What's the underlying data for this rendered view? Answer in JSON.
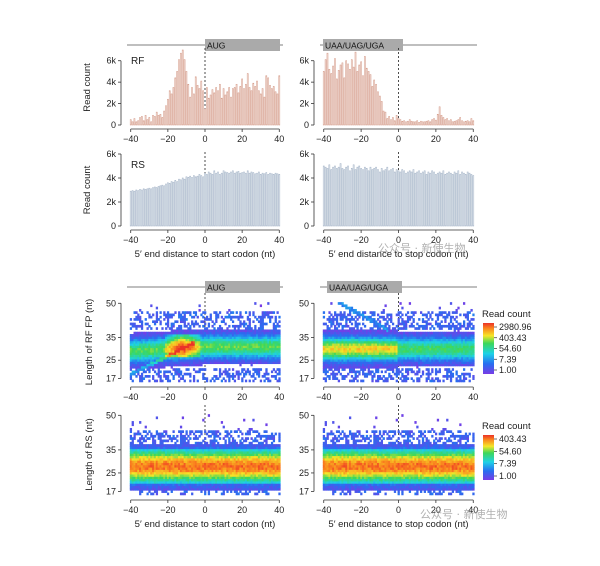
{
  "watermark": {
    "text_top": "公众号 · 新使生物",
    "text_bottom": "公众号 · 新使生物"
  },
  "chart_data": [
    {
      "type": "bar",
      "id": "rf-start",
      "header": "AUG",
      "title": "RF",
      "xlabel": "",
      "ylabel": "Read count",
      "xlim": [
        -42,
        42
      ],
      "ylim": [
        0,
        7000
      ],
      "xticks": [
        -40,
        -20,
        0,
        20,
        40
      ],
      "xticklabels": [
        "−40",
        "−20",
        "0",
        "20",
        "40"
      ],
      "yticks": [
        0,
        2000,
        4000,
        6000
      ],
      "yticklabels": [
        "0",
        "2k",
        "4k",
        "6k"
      ],
      "bar_color": "#d7a08f",
      "x": [
        -40,
        -39,
        -38,
        -37,
        -36,
        -35,
        -34,
        -33,
        -32,
        -31,
        -30,
        -29,
        -28,
        -27,
        -26,
        -25,
        -24,
        -23,
        -22,
        -21,
        -20,
        -19,
        -18,
        -17,
        -16,
        -15,
        -14,
        -13,
        -12,
        -11,
        -10,
        -9,
        -8,
        -7,
        -6,
        -5,
        -4,
        -3,
        -2,
        -1,
        0,
        1,
        2,
        3,
        4,
        5,
        6,
        7,
        8,
        9,
        10,
        11,
        12,
        13,
        14,
        15,
        16,
        17,
        18,
        19,
        20,
        21,
        22,
        23,
        24,
        25,
        26,
        27,
        28,
        29,
        30,
        31,
        32,
        33,
        34,
        35,
        36,
        37,
        38,
        39,
        40
      ],
      "values": [
        500,
        300,
        600,
        300,
        400,
        700,
        800,
        400,
        900,
        500,
        700,
        300,
        900,
        800,
        1200,
        900,
        1000,
        700,
        1300,
        1800,
        2400,
        3200,
        2900,
        3500,
        4400,
        5000,
        6100,
        6700,
        7000,
        6100,
        5000,
        3800,
        2600,
        3500,
        2900,
        4500,
        3700,
        3400,
        4100,
        3200,
        1500,
        3500,
        2500,
        2800,
        3300,
        3000,
        3500,
        3200,
        3800,
        2500,
        3400,
        2800,
        3100,
        3500,
        2600,
        3400,
        3500,
        3800,
        3000,
        3600,
        4300,
        3400,
        3800,
        4800,
        3500,
        3200,
        3900,
        3600,
        4100,
        3200,
        2900,
        3400,
        2600,
        4600,
        4400,
        3700,
        3400,
        3600,
        3100,
        2900,
        4600
      ]
    },
    {
      "type": "bar",
      "id": "rf-stop",
      "header": "UAA/UAG/UGA",
      "title": "",
      "xlabel": "",
      "ylabel": "",
      "xlim": [
        -42,
        42
      ],
      "ylim": [
        0,
        7000
      ],
      "xticks": [
        -40,
        -20,
        0,
        20,
        40
      ],
      "xticklabels": [
        "−40",
        "−20",
        "0",
        "20",
        "40"
      ],
      "yticks": [
        0,
        2000,
        4000,
        6000
      ],
      "yticklabels": [
        "0",
        "2k",
        "4k",
        "6k"
      ],
      "bar_color": "#d7a08f",
      "x": [
        -40,
        -39,
        -38,
        -37,
        -36,
        -35,
        -34,
        -33,
        -32,
        -31,
        -30,
        -29,
        -28,
        -27,
        -26,
        -25,
        -24,
        -23,
        -22,
        -21,
        -20,
        -19,
        -18,
        -17,
        -16,
        -15,
        -14,
        -13,
        -12,
        -11,
        -10,
        -9,
        -8,
        -7,
        -6,
        -5,
        -4,
        -3,
        -2,
        -1,
        0,
        1,
        2,
        3,
        4,
        5,
        6,
        7,
        8,
        9,
        10,
        11,
        12,
        13,
        14,
        15,
        16,
        17,
        18,
        19,
        20,
        21,
        22,
        23,
        24,
        25,
        26,
        27,
        28,
        29,
        30,
        31,
        32,
        33,
        34,
        35,
        36,
        37,
        38,
        39,
        40
      ],
      "values": [
        5000,
        6100,
        6700,
        5200,
        4800,
        5500,
        6200,
        4300,
        5100,
        5600,
        5800,
        4400,
        6000,
        5700,
        5200,
        6100,
        5400,
        6800,
        5000,
        5600,
        5900,
        4600,
        6400,
        5300,
        5000,
        4700,
        3600,
        4200,
        3800,
        3100,
        2700,
        2200,
        1300,
        1200,
        600,
        800,
        500,
        700,
        400,
        900,
        600,
        500,
        350,
        400,
        300,
        350,
        500,
        350,
        300,
        300,
        400,
        250,
        350,
        300,
        300,
        350,
        400,
        300,
        500,
        600,
        450,
        1000,
        1700,
        900,
        700,
        500,
        600,
        400,
        500,
        300,
        350,
        400,
        500,
        700,
        400,
        300,
        350,
        400,
        300,
        600,
        400
      ]
    },
    {
      "type": "bar",
      "id": "rs-start",
      "header": "",
      "title": "RS",
      "xlabel": "5′ end distance to start codon (nt)",
      "ylabel": "Read count",
      "xlim": [
        -42,
        42
      ],
      "ylim": [
        0,
        6000
      ],
      "xticks": [
        -40,
        -20,
        0,
        20,
        40
      ],
      "xticklabels": [
        "−40",
        "−20",
        "0",
        "20",
        "40"
      ],
      "yticks": [
        0,
        2000,
        4000,
        6000
      ],
      "yticklabels": [
        "0",
        "2k",
        "4k",
        "6k"
      ],
      "bar_color": "#a8b7ca",
      "x": [
        -40,
        -39,
        -38,
        -37,
        -36,
        -35,
        -34,
        -33,
        -32,
        -31,
        -30,
        -29,
        -28,
        -27,
        -26,
        -25,
        -24,
        -23,
        -22,
        -21,
        -20,
        -19,
        -18,
        -17,
        -16,
        -15,
        -14,
        -13,
        -12,
        -11,
        -10,
        -9,
        -8,
        -7,
        -6,
        -5,
        -4,
        -3,
        -2,
        -1,
        0,
        1,
        2,
        3,
        4,
        5,
        6,
        7,
        8,
        9,
        10,
        11,
        12,
        13,
        14,
        15,
        16,
        17,
        18,
        19,
        20,
        21,
        22,
        23,
        24,
        25,
        26,
        27,
        28,
        29,
        30,
        31,
        32,
        33,
        34,
        35,
        36,
        37,
        38,
        39,
        40
      ],
      "values": [
        2900,
        2950,
        2900,
        3000,
        2950,
        3050,
        3000,
        3100,
        3050,
        3100,
        3150,
        3100,
        3200,
        3250,
        3200,
        3300,
        3350,
        3400,
        3350,
        3500,
        3600,
        3550,
        3700,
        3650,
        3800,
        3700,
        3900,
        3850,
        4000,
        3900,
        4100,
        4050,
        4150,
        4050,
        4200,
        4100,
        4150,
        4300,
        4200,
        4100,
        4400,
        4300,
        4500,
        4400,
        4300,
        4600,
        4400,
        4500,
        4300,
        4400,
        4600,
        4500,
        4450,
        4400,
        4500,
        4600,
        4400,
        4500,
        4550,
        4400,
        4450,
        4500,
        4400,
        4600,
        4400,
        4500,
        4450,
        4350,
        4400,
        4500,
        4300,
        4400,
        4350,
        4450,
        4300,
        4400,
        4350,
        4300,
        4400,
        4350,
        4300
      ]
    },
    {
      "type": "bar",
      "id": "rs-stop",
      "header": "",
      "title": "",
      "xlabel": "5′ end distance to stop codon (nt)",
      "ylabel": "",
      "xlim": [
        -42,
        42
      ],
      "ylim": [
        0,
        6000
      ],
      "xticks": [
        -40,
        -20,
        0,
        20,
        40
      ],
      "xticklabels": [
        "−40",
        "−20",
        "0",
        "20",
        "40"
      ],
      "yticks": [
        0,
        2000,
        4000,
        6000
      ],
      "yticklabels": [
        "0",
        "2k",
        "4k",
        "6k"
      ],
      "bar_color": "#a8b7ca",
      "x": [
        -40,
        -39,
        -38,
        -37,
        -36,
        -35,
        -34,
        -33,
        -32,
        -31,
        -30,
        -29,
        -28,
        -27,
        -26,
        -25,
        -24,
        -23,
        -22,
        -21,
        -20,
        -19,
        -18,
        -17,
        -16,
        -15,
        -14,
        -13,
        -12,
        -11,
        -10,
        -9,
        -8,
        -7,
        -6,
        -5,
        -4,
        -3,
        -2,
        -1,
        0,
        1,
        2,
        3,
        4,
        5,
        6,
        7,
        8,
        9,
        10,
        11,
        12,
        13,
        14,
        15,
        16,
        17,
        18,
        19,
        20,
        21,
        22,
        23,
        24,
        25,
        26,
        27,
        28,
        29,
        30,
        31,
        32,
        33,
        34,
        35,
        36,
        37,
        38,
        39,
        40
      ],
      "values": [
        5000,
        4900,
        4800,
        5100,
        4700,
        4900,
        5000,
        4800,
        4900,
        5200,
        4800,
        4700,
        4900,
        5000,
        4600,
        4800,
        5100,
        4700,
        4900,
        5000,
        4800,
        4700,
        4900,
        4800,
        4600,
        4900,
        4700,
        4800,
        4900,
        4700,
        4500,
        4800,
        4600,
        4700,
        4900,
        4600,
        4700,
        4800,
        4500,
        4700,
        4600,
        4500,
        4700,
        4600,
        4400,
        4500,
        4600,
        4500,
        4700,
        4400,
        4500,
        4600,
        4400,
        4500,
        4600,
        4300,
        4500,
        4400,
        4600,
        4500,
        4300,
        4400,
        4500,
        4400,
        4600,
        4300,
        4400,
        4500,
        4400,
        4300,
        4500,
        4400,
        4600,
        4300,
        4500,
        4400,
        4300,
        4500,
        4400,
        4300,
        4200
      ]
    },
    {
      "type": "heatmap",
      "id": "heat-rf-start",
      "header": "AUG",
      "xlabel": "",
      "ylabel": "Length of RF FP (nt)",
      "xlim": [
        -42,
        42
      ],
      "ylim": [
        15,
        51
      ],
      "xticks": [
        -40,
        -20,
        0,
        20,
        40
      ],
      "xticklabels": [
        "−40",
        "−20",
        "0",
        "20",
        "40"
      ],
      "yticks": [
        17,
        25,
        35,
        50
      ],
      "yticklabels": [
        "17",
        "25",
        "35",
        "50"
      ],
      "pattern": "rf-start"
    },
    {
      "type": "heatmap",
      "id": "heat-rf-stop",
      "header": "UAA/UAG/UGA",
      "xlabel": "",
      "ylabel": "",
      "xlim": [
        -42,
        42
      ],
      "ylim": [
        15,
        51
      ],
      "xticks": [
        -40,
        -20,
        0,
        20,
        40
      ],
      "xticklabels": [
        "−40",
        "−20",
        "0",
        "20",
        "40"
      ],
      "yticks": [
        17,
        25,
        35,
        50
      ],
      "yticklabels": [
        "17",
        "25",
        "35",
        "50"
      ],
      "pattern": "rf-stop"
    },
    {
      "type": "heatmap",
      "id": "heat-rs-start",
      "header": "",
      "xlabel": "5′ end distance to start codon (nt)",
      "ylabel": "Length of RS (nt)",
      "xlim": [
        -42,
        42
      ],
      "ylim": [
        15,
        51
      ],
      "xticks": [
        -40,
        -20,
        0,
        20,
        40
      ],
      "xticklabels": [
        "−40",
        "−20",
        "0",
        "20",
        "40"
      ],
      "yticks": [
        17,
        25,
        35,
        50
      ],
      "yticklabels": [
        "17",
        "25",
        "35",
        "50"
      ],
      "pattern": "rs"
    },
    {
      "type": "heatmap",
      "id": "heat-rs-stop",
      "header": "",
      "xlabel": "5′ end distance to stop codon (nt)",
      "ylabel": "",
      "xlim": [
        -42,
        42
      ],
      "ylim": [
        15,
        51
      ],
      "xticks": [
        -40,
        -20,
        0,
        20,
        40
      ],
      "xticklabels": [
        "−40",
        "−20",
        "0",
        "20",
        "40"
      ],
      "yticks": [
        17,
        25,
        35,
        50
      ],
      "yticklabels": [
        "17",
        "25",
        "35",
        "50"
      ],
      "pattern": "rs"
    }
  ],
  "colorbars": [
    {
      "id": "cb-rf",
      "title": "Read count",
      "labels": [
        "2980.96",
        "403.43",
        "54.60",
        "7.39",
        "1.00"
      ]
    },
    {
      "id": "cb-rs",
      "title": "Read count",
      "labels": [
        "403.43",
        "54.60",
        "7.39",
        "1.00"
      ]
    }
  ]
}
